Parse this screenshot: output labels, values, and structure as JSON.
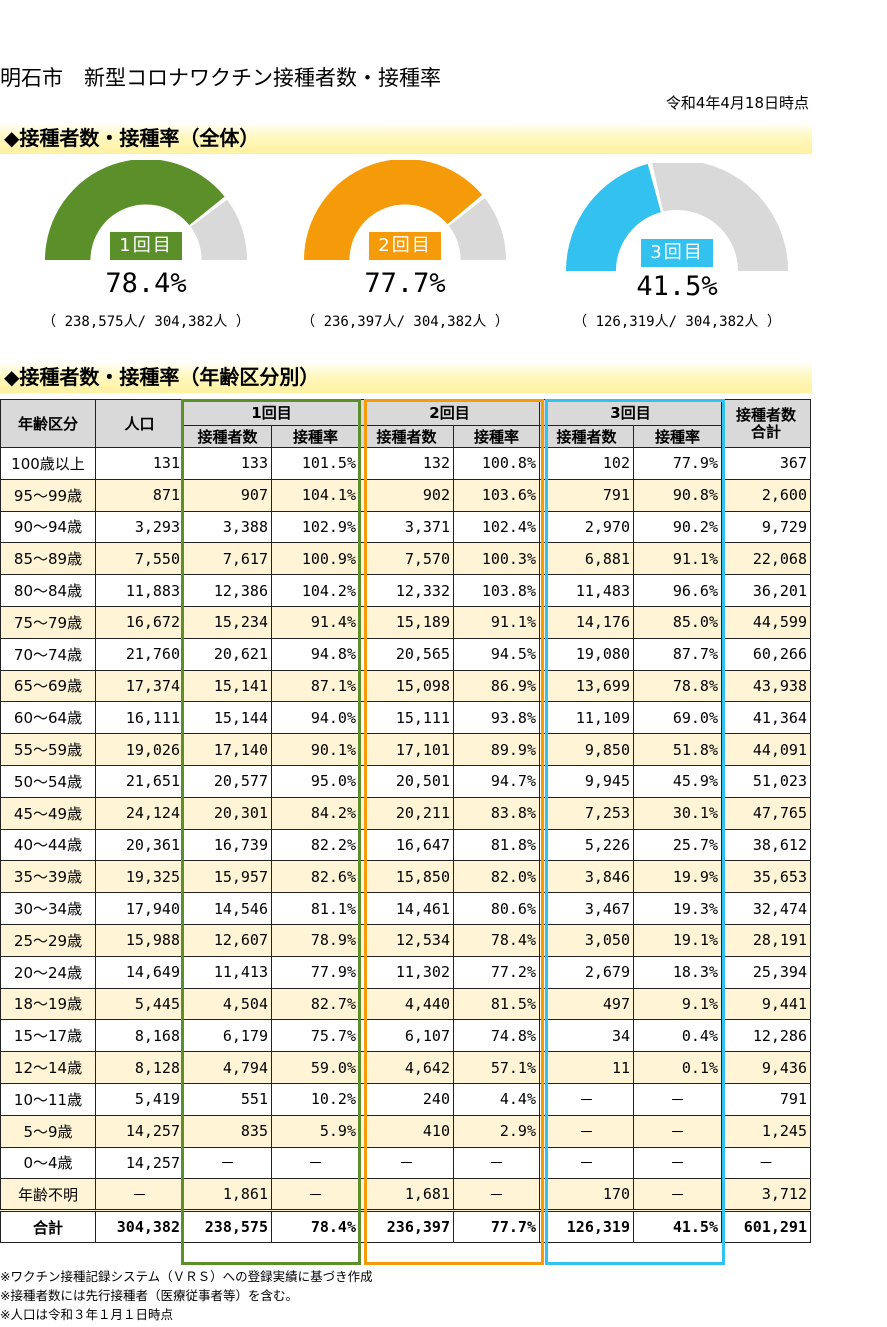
{
  "title": "明石市　新型コロナワクチン接種者数・接種率",
  "as_of": "令和4年4月18日時点",
  "section1_title": "◆接種者数・接種率（全体）",
  "section2_title": "◆接種者数・接種率（年齢区分別）",
  "colors": {
    "dose1": "#5b8f2a",
    "dose2": "#f59b0a",
    "dose3": "#33c1ef",
    "remainder": "#d9d9d9"
  },
  "gauges": [
    {
      "label": "1回目",
      "rate": "78.4%",
      "fraction": 0.784,
      "count": "（ 238,575人/ 304,382人 ）"
    },
    {
      "label": "2回目",
      "rate": "77.7%",
      "fraction": 0.777,
      "count": "（ 236,397人/ 304,382人 ）"
    },
    {
      "label": "3回目",
      "rate": "41.5%",
      "fraction": 0.415,
      "count": "（ 126,319人/ 304,382人 ）"
    }
  ],
  "table": {
    "headers": {
      "age": "年齢区分",
      "population": "人口",
      "dose1": "1回目",
      "dose2": "2回目",
      "dose3": "3回目",
      "count": "接種者数",
      "rate": "接種率",
      "total": "接種者数合計"
    },
    "rows": [
      [
        "100歳以上",
        "131",
        "133",
        "101.5%",
        "132",
        "100.8%",
        "102",
        "77.9%",
        "367"
      ],
      [
        "95～99歳",
        "871",
        "907",
        "104.1%",
        "902",
        "103.6%",
        "791",
        "90.8%",
        "2,600"
      ],
      [
        "90～94歳",
        "3,293",
        "3,388",
        "102.9%",
        "3,371",
        "102.4%",
        "2,970",
        "90.2%",
        "9,729"
      ],
      [
        "85～89歳",
        "7,550",
        "7,617",
        "100.9%",
        "7,570",
        "100.3%",
        "6,881",
        "91.1%",
        "22,068"
      ],
      [
        "80～84歳",
        "11,883",
        "12,386",
        "104.2%",
        "12,332",
        "103.8%",
        "11,483",
        "96.6%",
        "36,201"
      ],
      [
        "75～79歳",
        "16,672",
        "15,234",
        "91.4%",
        "15,189",
        "91.1%",
        "14,176",
        "85.0%",
        "44,599"
      ],
      [
        "70～74歳",
        "21,760",
        "20,621",
        "94.8%",
        "20,565",
        "94.5%",
        "19,080",
        "87.7%",
        "60,266"
      ],
      [
        "65～69歳",
        "17,374",
        "15,141",
        "87.1%",
        "15,098",
        "86.9%",
        "13,699",
        "78.8%",
        "43,938"
      ],
      [
        "60～64歳",
        "16,111",
        "15,144",
        "94.0%",
        "15,111",
        "93.8%",
        "11,109",
        "69.0%",
        "41,364"
      ],
      [
        "55～59歳",
        "19,026",
        "17,140",
        "90.1%",
        "17,101",
        "89.9%",
        "9,850",
        "51.8%",
        "44,091"
      ],
      [
        "50～54歳",
        "21,651",
        "20,577",
        "95.0%",
        "20,501",
        "94.7%",
        "9,945",
        "45.9%",
        "51,023"
      ],
      [
        "45～49歳",
        "24,124",
        "20,301",
        "84.2%",
        "20,211",
        "83.8%",
        "7,253",
        "30.1%",
        "47,765"
      ],
      [
        "40～44歳",
        "20,361",
        "16,739",
        "82.2%",
        "16,647",
        "81.8%",
        "5,226",
        "25.7%",
        "38,612"
      ],
      [
        "35～39歳",
        "19,325",
        "15,957",
        "82.6%",
        "15,850",
        "82.0%",
        "3,846",
        "19.9%",
        "35,653"
      ],
      [
        "30～34歳",
        "17,940",
        "14,546",
        "81.1%",
        "14,461",
        "80.6%",
        "3,467",
        "19.3%",
        "32,474"
      ],
      [
        "25～29歳",
        "15,988",
        "12,607",
        "78.9%",
        "12,534",
        "78.4%",
        "3,050",
        "19.1%",
        "28,191"
      ],
      [
        "20～24歳",
        "14,649",
        "11,413",
        "77.9%",
        "11,302",
        "77.2%",
        "2,679",
        "18.3%",
        "25,394"
      ],
      [
        "18～19歳",
        "5,445",
        "4,504",
        "82.7%",
        "4,440",
        "81.5%",
        "497",
        "9.1%",
        "9,441"
      ],
      [
        "15～17歳",
        "8,168",
        "6,179",
        "75.7%",
        "6,107",
        "74.8%",
        "34",
        "0.4%",
        "12,286"
      ],
      [
        "12～14歳",
        "8,128",
        "4,794",
        "59.0%",
        "4,642",
        "57.1%",
        "11",
        "0.1%",
        "9,436"
      ],
      [
        "10～11歳",
        "5,419",
        "551",
        "10.2%",
        "240",
        "4.4%",
        "－",
        "－",
        "791"
      ],
      [
        "5～9歳",
        "14,257",
        "835",
        "5.9%",
        "410",
        "2.9%",
        "－",
        "－",
        "1,245"
      ],
      [
        "0～4歳",
        "14,257",
        "－",
        "－",
        "－",
        "－",
        "－",
        "－",
        "－"
      ],
      [
        "年齢不明",
        "－",
        "1,861",
        "－",
        "1,681",
        "－",
        "170",
        "－",
        "3,712"
      ]
    ],
    "total": [
      "合計",
      "304,382",
      "238,575",
      "78.4%",
      "236,397",
      "77.7%",
      "126,319",
      "41.5%",
      "601,291"
    ]
  },
  "notes": [
    "※ワクチン接種記録システム（ＶＲＳ）への登録実績に基づき作成",
    "※接種者数には先行接種者（医療従事者等）を含む。",
    "※人口は令和３年１月１日時点"
  ]
}
